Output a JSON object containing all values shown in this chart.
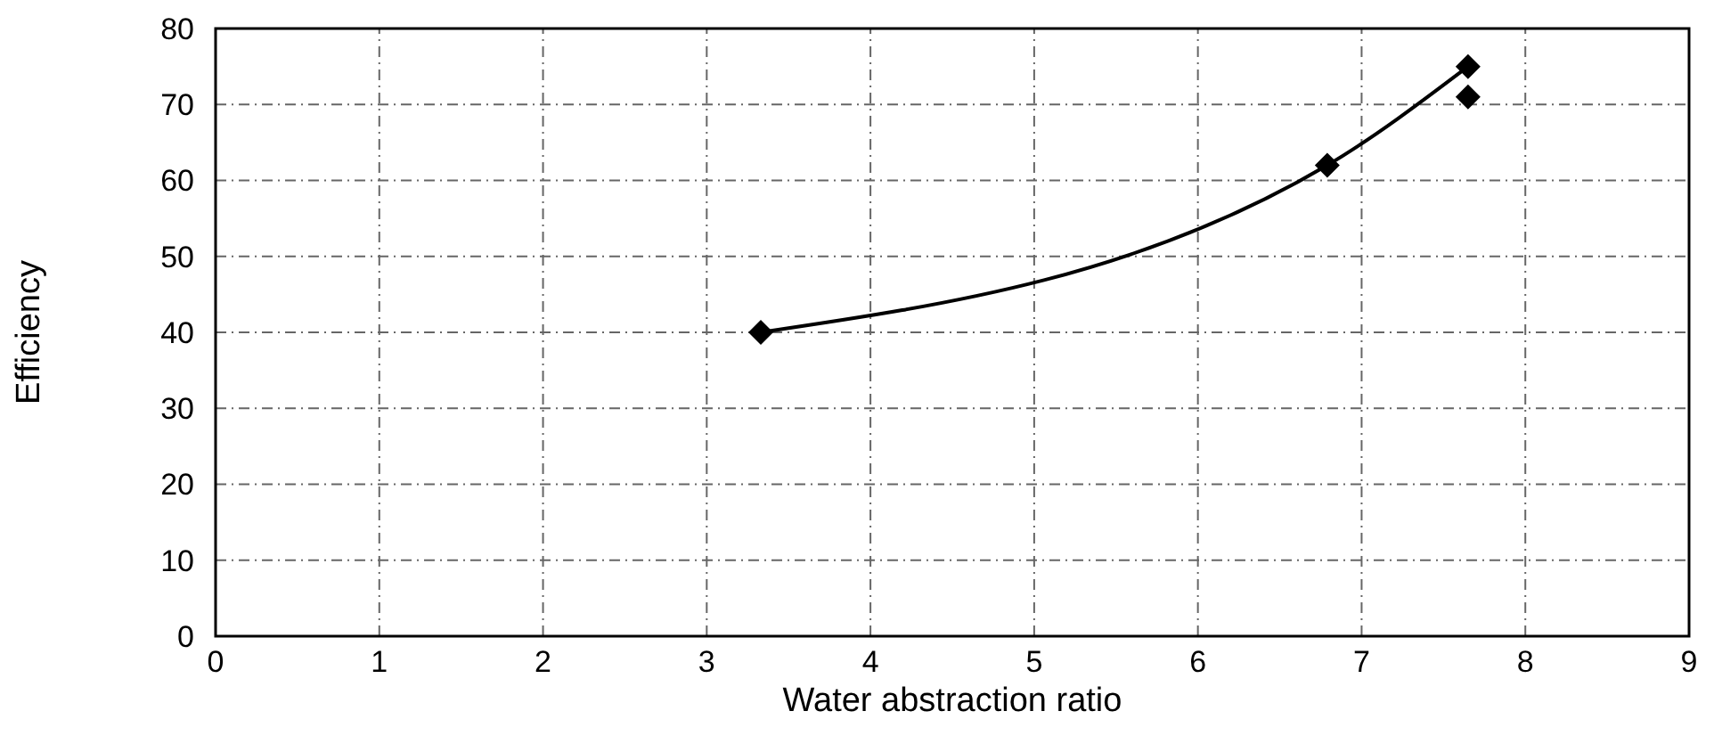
{
  "chart_data": {
    "type": "line",
    "xlabel": "Water abstraction ratio",
    "ylabel": "Efficiency",
    "xlim": [
      0,
      9
    ],
    "xticks": [
      0,
      1,
      2,
      3,
      4,
      5,
      6,
      7,
      8,
      9
    ],
    "ylim": [
      0,
      80
    ],
    "yticks": [
      0,
      10,
      20,
      30,
      40,
      50,
      60,
      70,
      80
    ],
    "grid": true,
    "marker": "diamond",
    "line_style": "solid",
    "series": [
      {
        "color": "#000000",
        "x": [
          3.33,
          6.79,
          7.65
        ],
        "values": [
          40,
          62,
          75
        ]
      },
      {
        "type": "scatter",
        "color": "#000000",
        "x": [
          7.65
        ],
        "values": [
          71
        ]
      }
    ]
  }
}
